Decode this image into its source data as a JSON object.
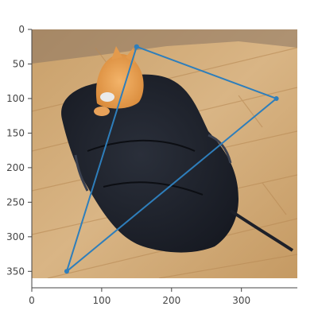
{
  "chart_data": {
    "type": "scatter",
    "mode": "lines+markers",
    "series": [
      {
        "x": [
          150,
          350,
          50,
          150
        ],
        "y": [
          25,
          100,
          350,
          25
        ],
        "color": "#2e7ebb"
      }
    ],
    "xlim": [
      0,
      380
    ],
    "ylim": [
      0,
      360
    ],
    "y_reversed": true,
    "x_ticks": [
      0,
      100,
      200,
      300
    ],
    "y_ticks": [
      0,
      50,
      100,
      150,
      200,
      250,
      300,
      350
    ],
    "background_image": {
      "description_icon": "photo-orange-cat-in-black-backpack-on-wooden-floor-icon"
    },
    "grid": false
  }
}
